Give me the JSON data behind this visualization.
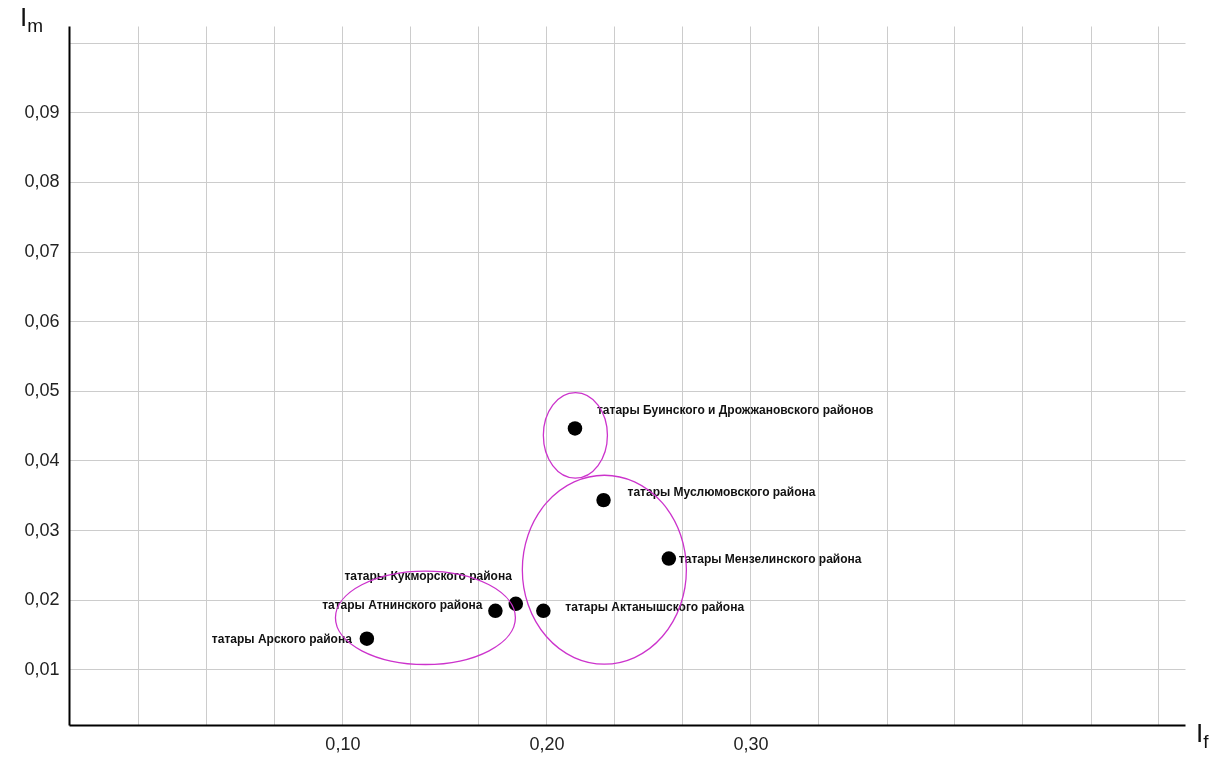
{
  "chart_data": {
    "type": "scatter",
    "xlabel": "I$_{f}$",
    "ylabel": "I$_{m}$",
    "x": [
      0.214,
      0.228,
      0.26,
      0.1985,
      0.185,
      0.175,
      0.112
    ],
    "values": [
      0.0446,
      0.0343,
      0.0259,
      0.0184,
      0.0194,
      0.0184,
      0.0144
    ],
    "color": "#000000",
    "marker": "circle",
    "grid": true,
    "xlim": [
      -0.034,
      0.513
    ],
    "ylim": [
      0.002,
      0.1024
    ],
    "xticks": [
      {
        "value": 0,
        "label": null
      },
      {
        "value": 0.0333,
        "label": null
      },
      {
        "value": 0.0667,
        "label": null
      },
      {
        "value": 0.1,
        "label": "0,10"
      },
      {
        "value": 0.1333,
        "label": null
      },
      {
        "value": 0.1667,
        "label": null
      },
      {
        "value": 0.2,
        "label": "0,20"
      },
      {
        "value": 0.2333,
        "label": null
      },
      {
        "value": 0.2667,
        "label": null
      },
      {
        "value": 0.3,
        "label": "0,30"
      },
      {
        "value": 0.3333,
        "label": null
      },
      {
        "value": 0.3667,
        "label": null
      },
      {
        "value": 0.4,
        "label": null
      },
      {
        "value": 0.4333,
        "label": null
      },
      {
        "value": 0.4667,
        "label": null
      },
      {
        "value": 0.5,
        "label": null
      }
    ],
    "yticks": [
      {
        "value": 0.01,
        "label": "0,01"
      },
      {
        "value": 0.02,
        "label": "0,02"
      },
      {
        "value": 0.03,
        "label": "0,03"
      },
      {
        "value": 0.04,
        "label": "0,04"
      },
      {
        "value": 0.05,
        "label": "0,05"
      },
      {
        "value": 0.06,
        "label": "0,06"
      },
      {
        "value": 0.07,
        "label": "0,07"
      },
      {
        "value": 0.08,
        "label": "0,08"
      },
      {
        "value": 0.09,
        "label": "0,09"
      },
      {
        "value": 0.1,
        "label": null
      }
    ],
    "annotations": [
      {
        "text": "татары Буинского и Дрожжановского районов",
        "x": 0.214,
        "y": 0.0446
      },
      {
        "text": "татары Муслюмовского района",
        "x": 0.228,
        "y": 0.0343
      },
      {
        "text": "татары Мензелинского района",
        "x": 0.26,
        "y": 0.0259
      },
      {
        "text": "татары Актанышского района",
        "x": 0.1985,
        "y": 0.0184
      },
      {
        "text": "татары Кукморского района",
        "x": 0.185,
        "y": 0.0194
      },
      {
        "text": "татары Атнинского района",
        "x": 0.175,
        "y": 0.0184
      },
      {
        "text": "татары Арского района",
        "x": 0.112,
        "y": 0.0144
      }
    ]
  }
}
